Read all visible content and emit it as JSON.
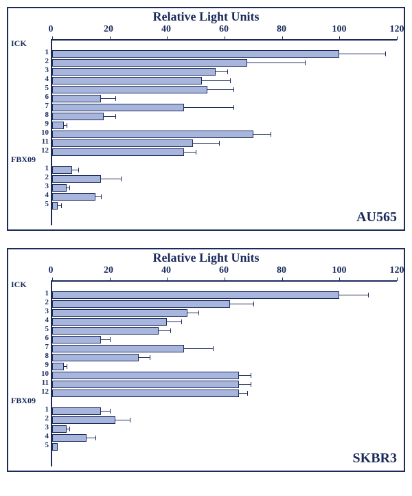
{
  "axis_title": "Relative Light Units",
  "xlim": [
    0,
    120
  ],
  "xtick_step": 20,
  "bar_color": "#a8b6de",
  "border_color": "#1a2a5a",
  "background_color": "#ffffff",
  "title_fontsize": 18,
  "label_fontsize": 11,
  "panels": [
    {
      "label": "AU565",
      "groups": [
        {
          "name": "ICK",
          "bars": [
            {
              "label": "1",
              "value": 100,
              "err": 16
            },
            {
              "label": "2",
              "value": 68,
              "err": 20
            },
            {
              "label": "3",
              "value": 57,
              "err": 4
            },
            {
              "label": "4",
              "value": 52,
              "err": 10
            },
            {
              "label": "5",
              "value": 54,
              "err": 9
            },
            {
              "label": "6",
              "value": 17,
              "err": 5
            },
            {
              "label": "7",
              "value": 46,
              "err": 17
            },
            {
              "label": "8",
              "value": 18,
              "err": 4
            },
            {
              "label": "9",
              "value": 4,
              "err": 1
            },
            {
              "label": "10",
              "value": 70,
              "err": 6
            },
            {
              "label": "11",
              "value": 49,
              "err": 9
            },
            {
              "label": "12",
              "value": 46,
              "err": 4
            }
          ]
        },
        {
          "name": "FBX09",
          "bars": [
            {
              "label": "1",
              "value": 7,
              "err": 2
            },
            {
              "label": "2",
              "value": 17,
              "err": 7
            },
            {
              "label": "3",
              "value": 5,
              "err": 1
            },
            {
              "label": "4",
              "value": 15,
              "err": 2
            },
            {
              "label": "5",
              "value": 2,
              "err": 1
            }
          ]
        }
      ]
    },
    {
      "label": "SKBR3",
      "groups": [
        {
          "name": "ICK",
          "bars": [
            {
              "label": "1",
              "value": 100,
              "err": 10
            },
            {
              "label": "2",
              "value": 62,
              "err": 8
            },
            {
              "label": "3",
              "value": 47,
              "err": 4
            },
            {
              "label": "4",
              "value": 40,
              "err": 5
            },
            {
              "label": "5",
              "value": 37,
              "err": 4
            },
            {
              "label": "6",
              "value": 17,
              "err": 3
            },
            {
              "label": "7",
              "value": 46,
              "err": 10
            },
            {
              "label": "8",
              "value": 30,
              "err": 4
            },
            {
              "label": "9",
              "value": 4,
              "err": 1
            },
            {
              "label": "10",
              "value": 65,
              "err": 4
            },
            {
              "label": "11",
              "value": 65,
              "err": 4
            },
            {
              "label": "12",
              "value": 65,
              "err": 3
            }
          ]
        },
        {
          "name": "FBX09",
          "bars": [
            {
              "label": "1",
              "value": 17,
              "err": 3
            },
            {
              "label": "2",
              "value": 22,
              "err": 5
            },
            {
              "label": "3",
              "value": 5,
              "err": 1
            },
            {
              "label": "4",
              "value": 12,
              "err": 3
            },
            {
              "label": "5",
              "value": 2,
              "err": 0
            }
          ]
        }
      ]
    }
  ]
}
